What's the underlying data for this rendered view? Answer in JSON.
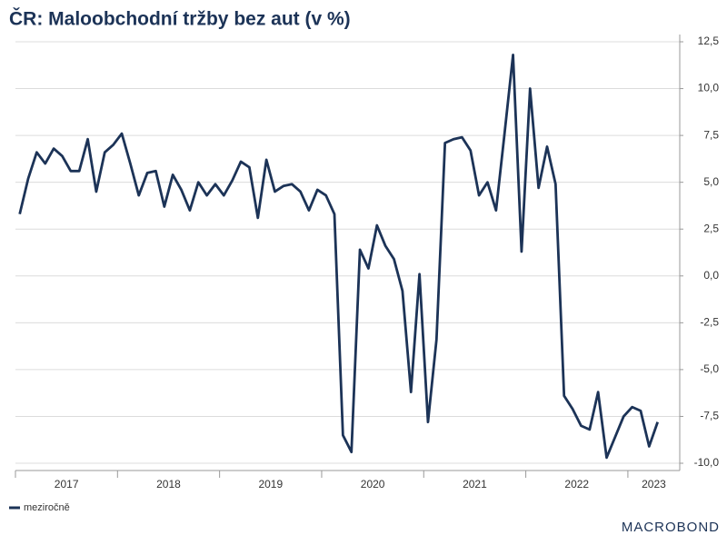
{
  "chart_data": {
    "type": "line",
    "title": "ČR: Maloobchodní tržby bez aut (v %)",
    "brand": "MACROBOND",
    "x": [
      "2017-01",
      "2017-02",
      "2017-03",
      "2017-04",
      "2017-05",
      "2017-06",
      "2017-07",
      "2017-08",
      "2017-09",
      "2017-10",
      "2017-11",
      "2017-12",
      "2018-01",
      "2018-02",
      "2018-03",
      "2018-04",
      "2018-05",
      "2018-06",
      "2018-07",
      "2018-08",
      "2018-09",
      "2018-10",
      "2018-11",
      "2018-12",
      "2019-01",
      "2019-02",
      "2019-03",
      "2019-04",
      "2019-05",
      "2019-06",
      "2019-07",
      "2019-08",
      "2019-09",
      "2019-10",
      "2019-11",
      "2019-12",
      "2020-01",
      "2020-02",
      "2020-03",
      "2020-04",
      "2020-05",
      "2020-06",
      "2020-07",
      "2020-08",
      "2020-09",
      "2020-10",
      "2020-11",
      "2020-12",
      "2021-01",
      "2021-02",
      "2021-03",
      "2021-04",
      "2021-05",
      "2021-06",
      "2021-07",
      "2021-08",
      "2021-09",
      "2021-10",
      "2021-11",
      "2021-12",
      "2022-01",
      "2022-02",
      "2022-03",
      "2022-04",
      "2022-05",
      "2022-06",
      "2022-07",
      "2022-08",
      "2022-09",
      "2022-10",
      "2022-11",
      "2022-12",
      "2023-01",
      "2023-02",
      "2023-03",
      "2023-04"
    ],
    "series": [
      {
        "name": "meziročně",
        "color": "#1c3357",
        "values": [
          3.3,
          5.2,
          6.6,
          6.0,
          6.8,
          6.4,
          5.6,
          5.6,
          7.3,
          4.5,
          6.6,
          7.0,
          7.6,
          6.0,
          4.3,
          5.5,
          5.6,
          3.7,
          5.4,
          4.6,
          3.5,
          5.0,
          4.3,
          4.9,
          4.3,
          5.1,
          6.1,
          5.8,
          3.1,
          6.2,
          4.5,
          4.8,
          4.9,
          4.5,
          3.5,
          4.6,
          4.3,
          3.3,
          -8.5,
          -9.4,
          1.4,
          0.4,
          2.7,
          1.6,
          0.9,
          -0.8,
          -6.2,
          0.1,
          -7.8,
          -3.4,
          7.1,
          7.3,
          7.4,
          6.7,
          4.3,
          5.0,
          3.5,
          7.6,
          11.8,
          1.3,
          10.0,
          4.7,
          6.9,
          4.9,
          -6.4,
          -7.1,
          -8.0,
          -8.2,
          -6.2,
          -9.7,
          -8.6,
          -7.5,
          -7.0,
          -7.2,
          -9.1,
          -7.8
        ]
      }
    ],
    "xticks": [
      2017,
      2018,
      2019,
      2020,
      2021,
      2022,
      2023
    ],
    "ylim": [
      -10,
      12.5
    ],
    "yticks": [
      {
        "value": -10,
        "label": "-10,0"
      },
      {
        "value": -7.5,
        "label": "-7,5"
      },
      {
        "value": -5,
        "label": "-5,0"
      },
      {
        "value": -2.5,
        "label": "-2,5"
      },
      {
        "value": 0,
        "label": "0,0"
      },
      {
        "value": 2.5,
        "label": "2,5"
      },
      {
        "value": 5,
        "label": "5,0"
      },
      {
        "value": 7.5,
        "label": "7,5"
      },
      {
        "value": 10,
        "label": "10,0"
      },
      {
        "value": 12.5,
        "label": "12,5"
      }
    ],
    "grid": true,
    "legend": "bottom-left"
  }
}
